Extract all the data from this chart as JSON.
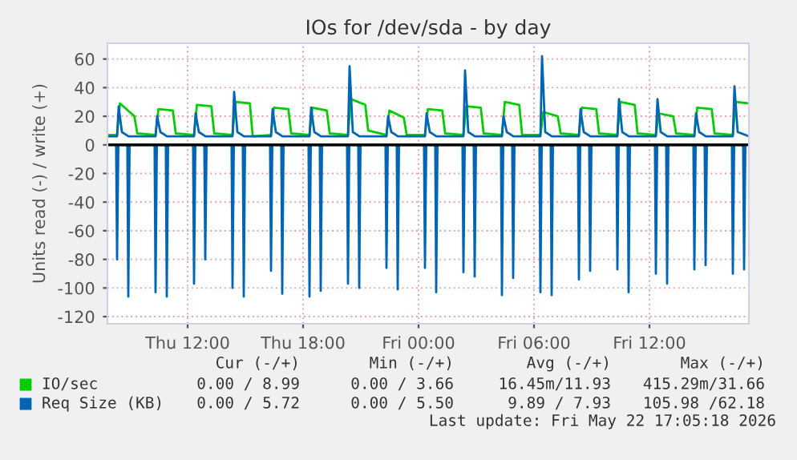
{
  "chart_data": {
    "type": "line",
    "title": "IOs for /dev/sda - by day",
    "ylabel": "Units read (-) / write (+)",
    "xlim": [
      "2026-05-21T07:50",
      "2026-05-22T17:10"
    ],
    "ylim": [
      -125,
      71
    ],
    "xticks": [
      {
        "value": "2026-05-21T12:00",
        "label": "Thu 12:00"
      },
      {
        "value": "2026-05-21T18:00",
        "label": "Thu 18:00"
      },
      {
        "value": "2026-05-22T00:00",
        "label": "Fri 00:00"
      },
      {
        "value": "2026-05-22T06:00",
        "label": "Fri 06:00"
      },
      {
        "value": "2026-05-22T12:00",
        "label": "Fri 12:00"
      }
    ],
    "yticks": [
      -120,
      -100,
      -80,
      -60,
      -40,
      -20,
      0,
      20,
      40,
      60
    ],
    "grid": true,
    "legend": "bottom",
    "ref_lines": [
      {
        "axis": "y",
        "value": 0,
        "color": "#000000"
      }
    ],
    "series": [
      {
        "name": "IO/sec",
        "color": "#00cc00",
        "x": [
          "2026-05-21T07:50",
          "2026-05-21T08:20",
          "2026-05-21T08:29",
          "2026-05-21T09:14",
          "2026-05-21T09:23",
          "2026-05-21T10:20",
          "2026-05-21T10:29",
          "2026-05-21T11:14",
          "2026-05-21T11:23",
          "2026-05-21T12:20",
          "2026-05-21T12:29",
          "2026-05-21T13:14",
          "2026-05-21T13:23",
          "2026-05-21T14:20",
          "2026-05-21T14:29",
          "2026-05-21T15:14",
          "2026-05-21T15:23",
          "2026-05-21T16:20",
          "2026-05-21T16:29",
          "2026-05-21T17:14",
          "2026-05-21T17:23",
          "2026-05-21T18:20",
          "2026-05-21T18:29",
          "2026-05-21T19:14",
          "2026-05-21T19:23",
          "2026-05-21T20:20",
          "2026-05-21T20:29",
          "2026-05-21T21:14",
          "2026-05-21T21:23",
          "2026-05-21T22:20",
          "2026-05-21T22:29",
          "2026-05-21T23:14",
          "2026-05-21T23:23",
          "2026-05-22T00:20",
          "2026-05-22T00:29",
          "2026-05-22T01:14",
          "2026-05-22T01:23",
          "2026-05-22T02:20",
          "2026-05-22T02:29",
          "2026-05-22T03:14",
          "2026-05-22T03:23",
          "2026-05-22T04:20",
          "2026-05-22T04:29",
          "2026-05-22T05:14",
          "2026-05-22T05:23",
          "2026-05-22T06:20",
          "2026-05-22T06:29",
          "2026-05-22T07:14",
          "2026-05-22T07:23",
          "2026-05-22T08:20",
          "2026-05-22T08:29",
          "2026-05-22T09:14",
          "2026-05-22T09:23",
          "2026-05-22T10:20",
          "2026-05-22T10:29",
          "2026-05-22T11:14",
          "2026-05-22T11:23",
          "2026-05-22T12:20",
          "2026-05-22T12:29",
          "2026-05-22T13:14",
          "2026-05-22T13:23",
          "2026-05-22T14:20",
          "2026-05-22T14:29",
          "2026-05-22T15:14",
          "2026-05-22T15:23",
          "2026-05-22T16:20",
          "2026-05-22T16:29",
          "2026-05-22T17:10"
        ],
        "values": [
          7,
          7,
          29,
          20,
          8,
          7,
          25,
          24,
          8,
          7,
          28,
          27,
          8,
          7,
          30,
          29,
          6,
          7,
          26,
          25,
          8,
          7,
          26,
          24,
          8,
          7,
          32,
          28,
          10,
          7,
          24,
          19,
          7,
          7,
          25,
          24,
          8,
          7,
          27,
          26,
          8,
          7,
          30,
          28,
          7,
          7,
          23,
          20,
          8,
          7,
          26,
          25,
          8,
          7,
          30,
          28,
          8,
          7,
          22,
          20,
          8,
          7,
          26,
          25,
          8,
          7,
          30,
          29
        ]
      },
      {
        "name": "Req Size (KB)",
        "color": "#0066b3",
        "x": [
          "2026-05-21T07:50",
          "2026-05-21T08:20",
          "2026-05-21T08:25",
          "2026-05-21T08:35",
          "2026-05-21T08:56",
          "2026-05-21T10:20",
          "2026-05-21T10:25",
          "2026-05-21T10:35",
          "2026-05-21T10:56",
          "2026-05-21T12:20",
          "2026-05-21T12:25",
          "2026-05-21T12:35",
          "2026-05-21T12:56",
          "2026-05-21T14:20",
          "2026-05-21T14:25",
          "2026-05-21T14:35",
          "2026-05-21T14:56",
          "2026-05-21T16:20",
          "2026-05-21T16:25",
          "2026-05-21T16:35",
          "2026-05-21T16:56",
          "2026-05-21T18:20",
          "2026-05-21T18:25",
          "2026-05-21T18:35",
          "2026-05-21T18:56",
          "2026-05-21T20:20",
          "2026-05-21T20:25",
          "2026-05-21T20:35",
          "2026-05-21T20:56",
          "2026-05-21T22:20",
          "2026-05-21T22:25",
          "2026-05-21T22:35",
          "2026-05-21T22:56",
          "2026-05-22T00:20",
          "2026-05-22T00:25",
          "2026-05-22T00:35",
          "2026-05-22T00:56",
          "2026-05-22T02:20",
          "2026-05-22T02:25",
          "2026-05-22T02:35",
          "2026-05-22T02:56",
          "2026-05-22T04:20",
          "2026-05-22T04:25",
          "2026-05-22T04:35",
          "2026-05-22T04:56",
          "2026-05-22T06:20",
          "2026-05-22T06:25",
          "2026-05-22T06:35",
          "2026-05-22T06:56",
          "2026-05-22T08:20",
          "2026-05-22T08:25",
          "2026-05-22T08:35",
          "2026-05-22T08:56",
          "2026-05-22T10:20",
          "2026-05-22T10:25",
          "2026-05-22T10:35",
          "2026-05-22T10:56",
          "2026-05-22T12:20",
          "2026-05-22T12:25",
          "2026-05-22T12:35",
          "2026-05-22T12:56",
          "2026-05-22T14:20",
          "2026-05-22T14:25",
          "2026-05-22T14:35",
          "2026-05-22T14:56",
          "2026-05-22T16:20",
          "2026-05-22T16:25",
          "2026-05-22T16:35",
          "2026-05-22T17:10"
        ],
        "values": [
          6,
          6,
          27,
          9,
          6,
          6,
          20,
          9,
          6,
          6,
          22,
          9,
          6,
          6,
          37,
          9,
          6,
          6,
          25,
          9,
          6,
          6,
          26,
          9,
          6,
          6,
          55,
          9,
          6,
          6,
          20,
          9,
          6,
          6,
          22,
          9,
          6,
          6,
          52,
          9,
          6,
          6,
          20,
          9,
          6,
          6,
          62,
          9,
          6,
          6,
          25,
          9,
          6,
          6,
          32,
          9,
          6,
          6,
          32,
          9,
          6,
          6,
          22,
          9,
          6,
          6,
          41,
          9,
          6
        ]
      },
      {
        "color": "#0066b3",
        "x": [
          "2026-05-21T08:17",
          "2026-05-21T08:20",
          "2026-05-21T08:24",
          "2026-05-21T08:52",
          "2026-05-21T08:55",
          "2026-05-21T08:59",
          "2026-05-21T10:17",
          "2026-05-21T10:20",
          "2026-05-21T10:24",
          "2026-05-21T10:52",
          "2026-05-21T10:55",
          "2026-05-21T10:59",
          "2026-05-21T12:17",
          "2026-05-21T12:20",
          "2026-05-21T12:24",
          "2026-05-21T12:52",
          "2026-05-21T12:55",
          "2026-05-21T12:59",
          "2026-05-21T14:17",
          "2026-05-21T14:20",
          "2026-05-21T14:24",
          "2026-05-21T14:52",
          "2026-05-21T14:55",
          "2026-05-21T14:59",
          "2026-05-21T16:17",
          "2026-05-21T16:20",
          "2026-05-21T16:24",
          "2026-05-21T16:52",
          "2026-05-21T16:55",
          "2026-05-21T16:59",
          "2026-05-21T18:17",
          "2026-05-21T18:20",
          "2026-05-21T18:24",
          "2026-05-21T18:52",
          "2026-05-21T18:55",
          "2026-05-21T18:59",
          "2026-05-21T20:17",
          "2026-05-21T20:20",
          "2026-05-21T20:24",
          "2026-05-21T20:52",
          "2026-05-21T20:55",
          "2026-05-21T20:59",
          "2026-05-21T22:17",
          "2026-05-21T22:20",
          "2026-05-21T22:24",
          "2026-05-21T22:52",
          "2026-05-21T22:55",
          "2026-05-21T22:59",
          "2026-05-22T00:17",
          "2026-05-22T00:20",
          "2026-05-22T00:24",
          "2026-05-22T00:52",
          "2026-05-22T00:55",
          "2026-05-22T00:59",
          "2026-05-22T02:17",
          "2026-05-22T02:20",
          "2026-05-22T02:24",
          "2026-05-22T02:52",
          "2026-05-22T02:55",
          "2026-05-22T02:59",
          "2026-05-22T04:17",
          "2026-05-22T04:20",
          "2026-05-22T04:24",
          "2026-05-22T04:52",
          "2026-05-22T04:55",
          "2026-05-22T04:59",
          "2026-05-22T06:17",
          "2026-05-22T06:20",
          "2026-05-22T06:24",
          "2026-05-22T06:52",
          "2026-05-22T06:55",
          "2026-05-22T06:59",
          "2026-05-22T08:17",
          "2026-05-22T08:20",
          "2026-05-22T08:24",
          "2026-05-22T08:52",
          "2026-05-22T08:55",
          "2026-05-22T08:59",
          "2026-05-22T10:17",
          "2026-05-22T10:20",
          "2026-05-22T10:24",
          "2026-05-22T10:52",
          "2026-05-22T10:55",
          "2026-05-22T10:59",
          "2026-05-22T12:17",
          "2026-05-22T12:20",
          "2026-05-22T12:24",
          "2026-05-22T12:52",
          "2026-05-22T12:55",
          "2026-05-22T12:59",
          "2026-05-22T14:17",
          "2026-05-22T14:20",
          "2026-05-22T14:24",
          "2026-05-22T14:52",
          "2026-05-22T14:55",
          "2026-05-22T14:59",
          "2026-05-22T16:17",
          "2026-05-22T16:20",
          "2026-05-22T16:24",
          "2026-05-22T16:52",
          "2026-05-22T16:55",
          "2026-05-22T16:59"
        ],
        "values": [
          0,
          -80,
          0,
          0,
          -106,
          0,
          0,
          -103,
          0,
          0,
          -106,
          0,
          0,
          -97,
          0,
          0,
          -80,
          0,
          0,
          -100,
          0,
          0,
          -106,
          0,
          0,
          -88,
          0,
          0,
          -104,
          0,
          0,
          -106,
          0,
          0,
          -102,
          0,
          0,
          -97,
          0,
          0,
          -100,
          0,
          0,
          -86,
          0,
          0,
          -101,
          0,
          0,
          -86,
          0,
          0,
          -103,
          0,
          0,
          -89,
          0,
          0,
          -92,
          0,
          0,
          -105,
          0,
          0,
          -93,
          0,
          0,
          -103,
          0,
          0,
          -105,
          0,
          0,
          -94,
          0,
          0,
          -88,
          0,
          0,
          -87,
          0,
          0,
          -103,
          0,
          0,
          -90,
          0,
          0,
          -97,
          0,
          0,
          -87,
          0,
          0,
          -84,
          0,
          0,
          -90,
          0,
          0,
          -87,
          0
        ]
      }
    ],
    "annotations": [
      "Cur (-/+)",
      "Min (-/+)",
      "Avg (-/+)",
      "Max (-/+)",
      "0.00 / 8.99",
      "0.00 / 3.66",
      "16.45m/11.93",
      "415.29m/31.66",
      "0.00 / 5.72",
      "0.00 / 5.50",
      "9.89 / 7.93",
      "105.98 /62.18",
      "Last update: Fri May 22 17:05:18 2026"
    ]
  }
}
